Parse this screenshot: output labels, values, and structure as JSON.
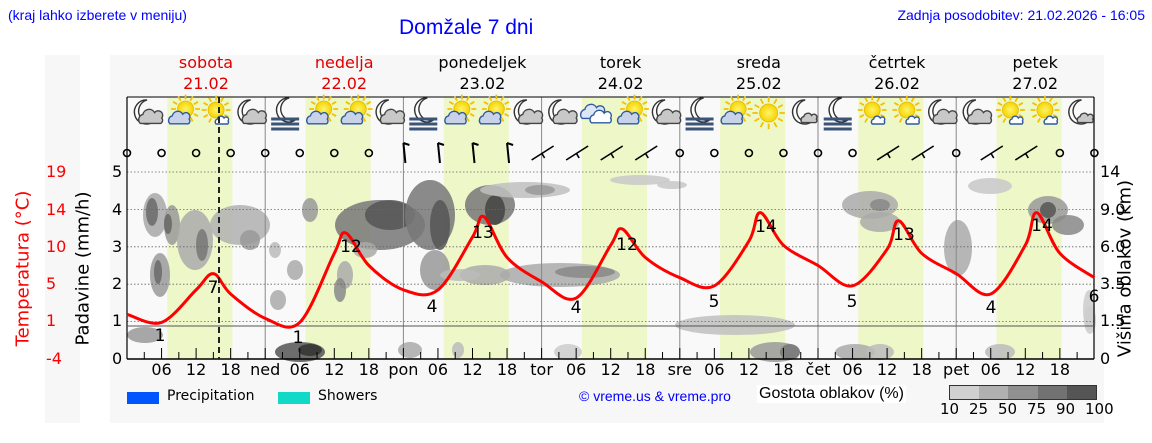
{
  "header": {
    "hint": "(kraj lahko izberete v meniju)",
    "title": "Domžale 7 dni",
    "updated": "Zadnja posodobitev: 21.02.2026 - 16:05"
  },
  "days": [
    {
      "name": "sobota",
      "date": "21.02",
      "weekend": true
    },
    {
      "name": "nedelja",
      "date": "22.02",
      "weekend": true
    },
    {
      "name": "ponedeljek",
      "date": "23.02",
      "weekend": false
    },
    {
      "name": "torek",
      "date": "24.02",
      "weekend": false
    },
    {
      "name": "sreda",
      "date": "25.02",
      "weekend": false
    },
    {
      "name": "četrtek",
      "date": "26.02",
      "weekend": false
    },
    {
      "name": "petek",
      "date": "27.02",
      "weekend": false
    }
  ],
  "colors": {
    "temperature": "#ff0000",
    "precipitation": "#0055ff",
    "showers": "#11d9c8",
    "daylight": "#eef7c8",
    "title": "#0000ff"
  },
  "axes": {
    "left_temp_label": "Temperatura (°C)",
    "left_temp_ticks": [
      "19",
      "14",
      "10",
      "5",
      "1",
      "-4"
    ],
    "left_precip_label": "Padavine (mm/h)",
    "left_precip_ticks": [
      "5",
      "4",
      "3",
      "2",
      "1",
      "0"
    ],
    "right_label": "Višina oblakov (km)",
    "right_ticks": [
      "14",
      "9.0",
      "6.0",
      "3.5",
      "1.5",
      "0"
    ],
    "x_ticks": [
      "06",
      "12",
      "18",
      "ned",
      "06",
      "12",
      "18",
      "pon",
      "06",
      "12",
      "18",
      "tor",
      "06",
      "12",
      "18",
      "sre",
      "06",
      "12",
      "18",
      "čet",
      "06",
      "12",
      "18",
      "pet",
      "06",
      "12",
      "18"
    ]
  },
  "legend": {
    "precipitation": "Precipitation",
    "showers": "Showers",
    "copyright": "© vreme.us & vreme.pro",
    "cloud_density_label": "Gostota oblakov (%)",
    "cloud_density_ticks": [
      "10",
      "25",
      "50",
      "75",
      "90",
      "100"
    ],
    "cloud_density_colors": [
      "#d0d0d0",
      "#b0b0b0",
      "#909090",
      "#727272",
      "#555555"
    ]
  },
  "weather_icons": [
    "night-cloudy",
    "partly-sunny",
    "sun-small-cloud",
    "night-cloudy",
    "night-fog",
    "partly-sunny",
    "partly-sunny",
    "night-cloudy",
    "night-fog",
    "partly-sunny",
    "partly-sunny",
    "night-cloudy",
    "night-cloudy",
    "cloudy",
    "partly-sunny",
    "night-cloudy",
    "night-fog",
    "partly-sunny",
    "sunny",
    "night-small-cloud",
    "night-fog",
    "sun-small-cloud",
    "sun-small-cloud",
    "night-cloudy",
    "night-cloudy",
    "sun-small-cloud",
    "sun-small-cloud",
    "night-small-cloud"
  ],
  "chart_data": {
    "type": "line",
    "title": "Domžale 7 dni",
    "xlabel": "",
    "ylabel": "Temperatura (°C)",
    "x": [
      "Sat 00",
      "Sat 06",
      "Sat 12",
      "Sat 15",
      "Sat 18",
      "Sun 00",
      "Sun 06",
      "Sun 12",
      "Sun 14",
      "Sun 18",
      "Mon 00",
      "Mon 06",
      "Mon 12",
      "Mon 14",
      "Mon 18",
      "Tue 00",
      "Tue 06",
      "Tue 12",
      "Tue 14",
      "Tue 18",
      "Wed 00",
      "Wed 06",
      "Wed 12",
      "Wed 14",
      "Wed 18",
      "Thu 00",
      "Thu 06",
      "Thu 12",
      "Thu 14",
      "Thu 18",
      "Fri 00",
      "Fri 06",
      "Fri 12",
      "Fri 14",
      "Fri 18",
      "Fri 24"
    ],
    "series": [
      {
        "name": "Temperatura (°C)",
        "values": [
          1.5,
          0.5,
          4.5,
          6.5,
          4,
          1,
          0.5,
          9,
          11.5,
          7.5,
          4.5,
          4.5,
          11,
          13.5,
          8.5,
          5.5,
          3.5,
          10,
          12,
          8.5,
          6,
          5,
          10.5,
          14,
          10,
          7.5,
          5,
          9.5,
          13,
          9,
          6.5,
          4,
          10,
          14,
          9,
          6
        ]
      }
    ],
    "annotations": {
      "temp_min_max_labels": [
        {
          "day": "sobota",
          "min": 1,
          "max": 7
        },
        {
          "day": "nedelja",
          "min": 1,
          "max": 12
        },
        {
          "day": "ponedeljek",
          "min": 4,
          "max": 13
        },
        {
          "day": "torek",
          "min": 4,
          "max": 12
        },
        {
          "day": "sreda",
          "min": 5,
          "max": 14
        },
        {
          "day": "četrtek",
          "min": 5,
          "max": 13
        },
        {
          "day": "petek",
          "min": 4,
          "max": 14
        },
        {
          "day": "end",
          "min": 6
        }
      ],
      "current_time_marker": "Sat 16:05"
    },
    "precipitation_mm_h": "0 (no precipitation bars shown)",
    "ylim_temp": [
      -4,
      19
    ],
    "ylim_precip": [
      0,
      5
    ],
    "ylim_cloud_height_km": [
      0,
      14
    ],
    "grid": true,
    "legend_position": "bottom"
  }
}
